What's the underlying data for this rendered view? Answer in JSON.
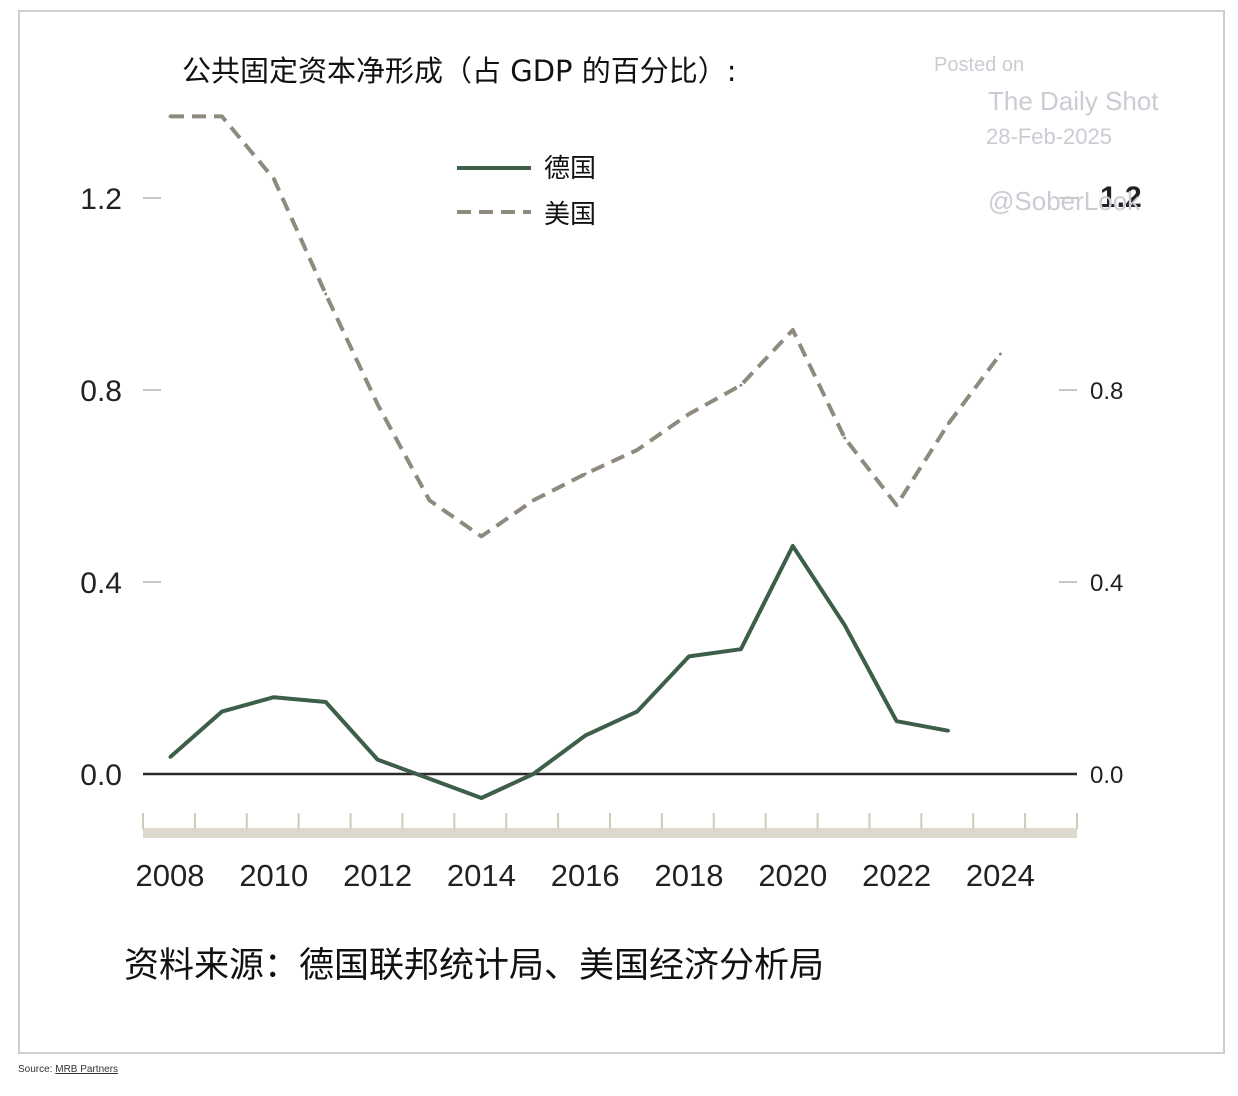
{
  "chart_data": {
    "type": "line",
    "title": "公共固定资本净形成（占 GDP 的百分比）:",
    "x": [
      2008,
      2009,
      2010,
      2011,
      2012,
      2013,
      2014,
      2015,
      2016,
      2017,
      2018,
      2019,
      2020,
      2021,
      2022,
      2023,
      2024
    ],
    "series": [
      {
        "name": "德国",
        "color": "#3d5e48",
        "style": "solid",
        "values": [
          0.035,
          0.13,
          0.16,
          0.15,
          0.03,
          -0.01,
          -0.05,
          0.0,
          0.08,
          0.13,
          0.245,
          0.26,
          0.475,
          0.31,
          0.11,
          0.09,
          null
        ]
      },
      {
        "name": "美国",
        "color": "#8f8a7e",
        "style": "dashed",
        "values": [
          1.37,
          1.37,
          1.24,
          1.0,
          0.77,
          0.57,
          0.495,
          0.57,
          0.625,
          0.675,
          0.75,
          0.81,
          0.925,
          0.7,
          0.56,
          0.73,
          0.875
        ]
      }
    ],
    "ylim": [
      -0.1,
      1.45
    ],
    "yticks_left": [
      "1.2",
      "0.8",
      "0.4",
      "0.0"
    ],
    "yticks_right": [
      "1.2",
      "0.8",
      "0.4",
      "0.0"
    ],
    "ytick_values": [
      1.2,
      0.8,
      0.4,
      0.0
    ],
    "xticks": [
      "2008",
      "2010",
      "2012",
      "2014",
      "2016",
      "2018",
      "2020",
      "2022",
      "2024"
    ],
    "xlabel": "",
    "ylabel": "",
    "legend": "top-center",
    "source": "资料来源：德国联邦统计局、美国经济分析局"
  },
  "watermark": {
    "posted": "Posted on",
    "site": "The Daily Shot",
    "date": "28-Feb-2025",
    "handle": "@SoberLook"
  },
  "footer": {
    "prefix": "Source: ",
    "link": "MRB Partners"
  }
}
